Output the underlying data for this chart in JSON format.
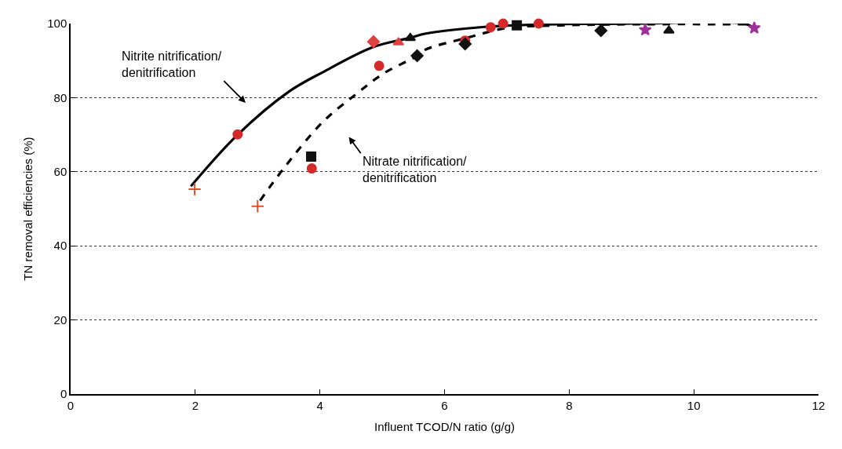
{
  "chart_data": {
    "type": "scatter",
    "xlabel": "Influent TCOD/N ratio (g/g)",
    "ylabel": "TN removal efficiencies (%)",
    "xlim": [
      0,
      12
    ],
    "xticks": [
      0,
      2,
      4,
      6,
      8,
      10,
      12
    ],
    "ylim": [
      0,
      100
    ],
    "yticks": [
      0,
      20,
      40,
      60,
      80,
      100
    ],
    "grid": "y",
    "series": [
      {
        "type": "line",
        "color": "#000000",
        "line_style": "solid",
        "x": [
          1.93,
          2.68,
          3.5,
          4.05,
          4.86,
          5.44,
          5.7,
          6.57,
          7.5,
          9.0,
          10.8,
          10.97
        ],
        "values": [
          56.1,
          70,
          81.6,
          86.9,
          93.7,
          96.1,
          97.3,
          99,
          99.7,
          100,
          100,
          98.8
        ]
      },
      {
        "type": "line",
        "color": "#000000",
        "line_style": "dashed",
        "x": [
          3.04,
          3.41,
          4.05,
          4.57,
          5.01,
          5.56,
          5.7,
          6.35,
          7.0,
          7.86,
          9.0,
          10.92
        ],
        "values": [
          52.2,
          60.7,
          73.5,
          80.8,
          86.4,
          91.3,
          93,
          96.1,
          98.8,
          99.5,
          99.8,
          99.8
        ]
      },
      {
        "marker": "circle",
        "color": "#d42a2a",
        "x": [
          2.68,
          3.87,
          4.95,
          6.33,
          6.74,
          6.94,
          7.51
        ],
        "values": [
          70.1,
          60.9,
          88.6,
          95.4,
          99.0,
          100,
          100
        ]
      },
      {
        "marker": "cross",
        "color": "#e0502a",
        "x": [
          1.99,
          3.0
        ],
        "values": [
          55.3,
          50.7
        ]
      },
      {
        "marker": "square",
        "color": "#111111",
        "x": [
          3.86,
          7.16
        ],
        "values": [
          64.1,
          99.5
        ]
      },
      {
        "marker": "diamond",
        "color": "#111111",
        "x": [
          5.56,
          6.33,
          8.51
        ],
        "values": [
          91.3,
          94.5,
          98.1
        ]
      },
      {
        "marker": "triangle",
        "color": "#111111",
        "x": [
          5.45,
          9.6
        ],
        "values": [
          96.1,
          98.1
        ]
      },
      {
        "marker": "triangle",
        "color": "#e04040",
        "x": [
          5.26
        ],
        "values": [
          94.9
        ]
      },
      {
        "marker": "diamond",
        "color": "#e04040",
        "x": [
          4.86
        ],
        "values": [
          95.1
        ]
      },
      {
        "marker": "star",
        "color": "#a0309a",
        "x": [
          9.22,
          10.97
        ],
        "values": [
          98.3,
          98.8
        ]
      }
    ],
    "annotations": [
      "Nitrite nitrification/\ndenitrification",
      "Nitrate nitrification/\ndenitrification"
    ]
  }
}
